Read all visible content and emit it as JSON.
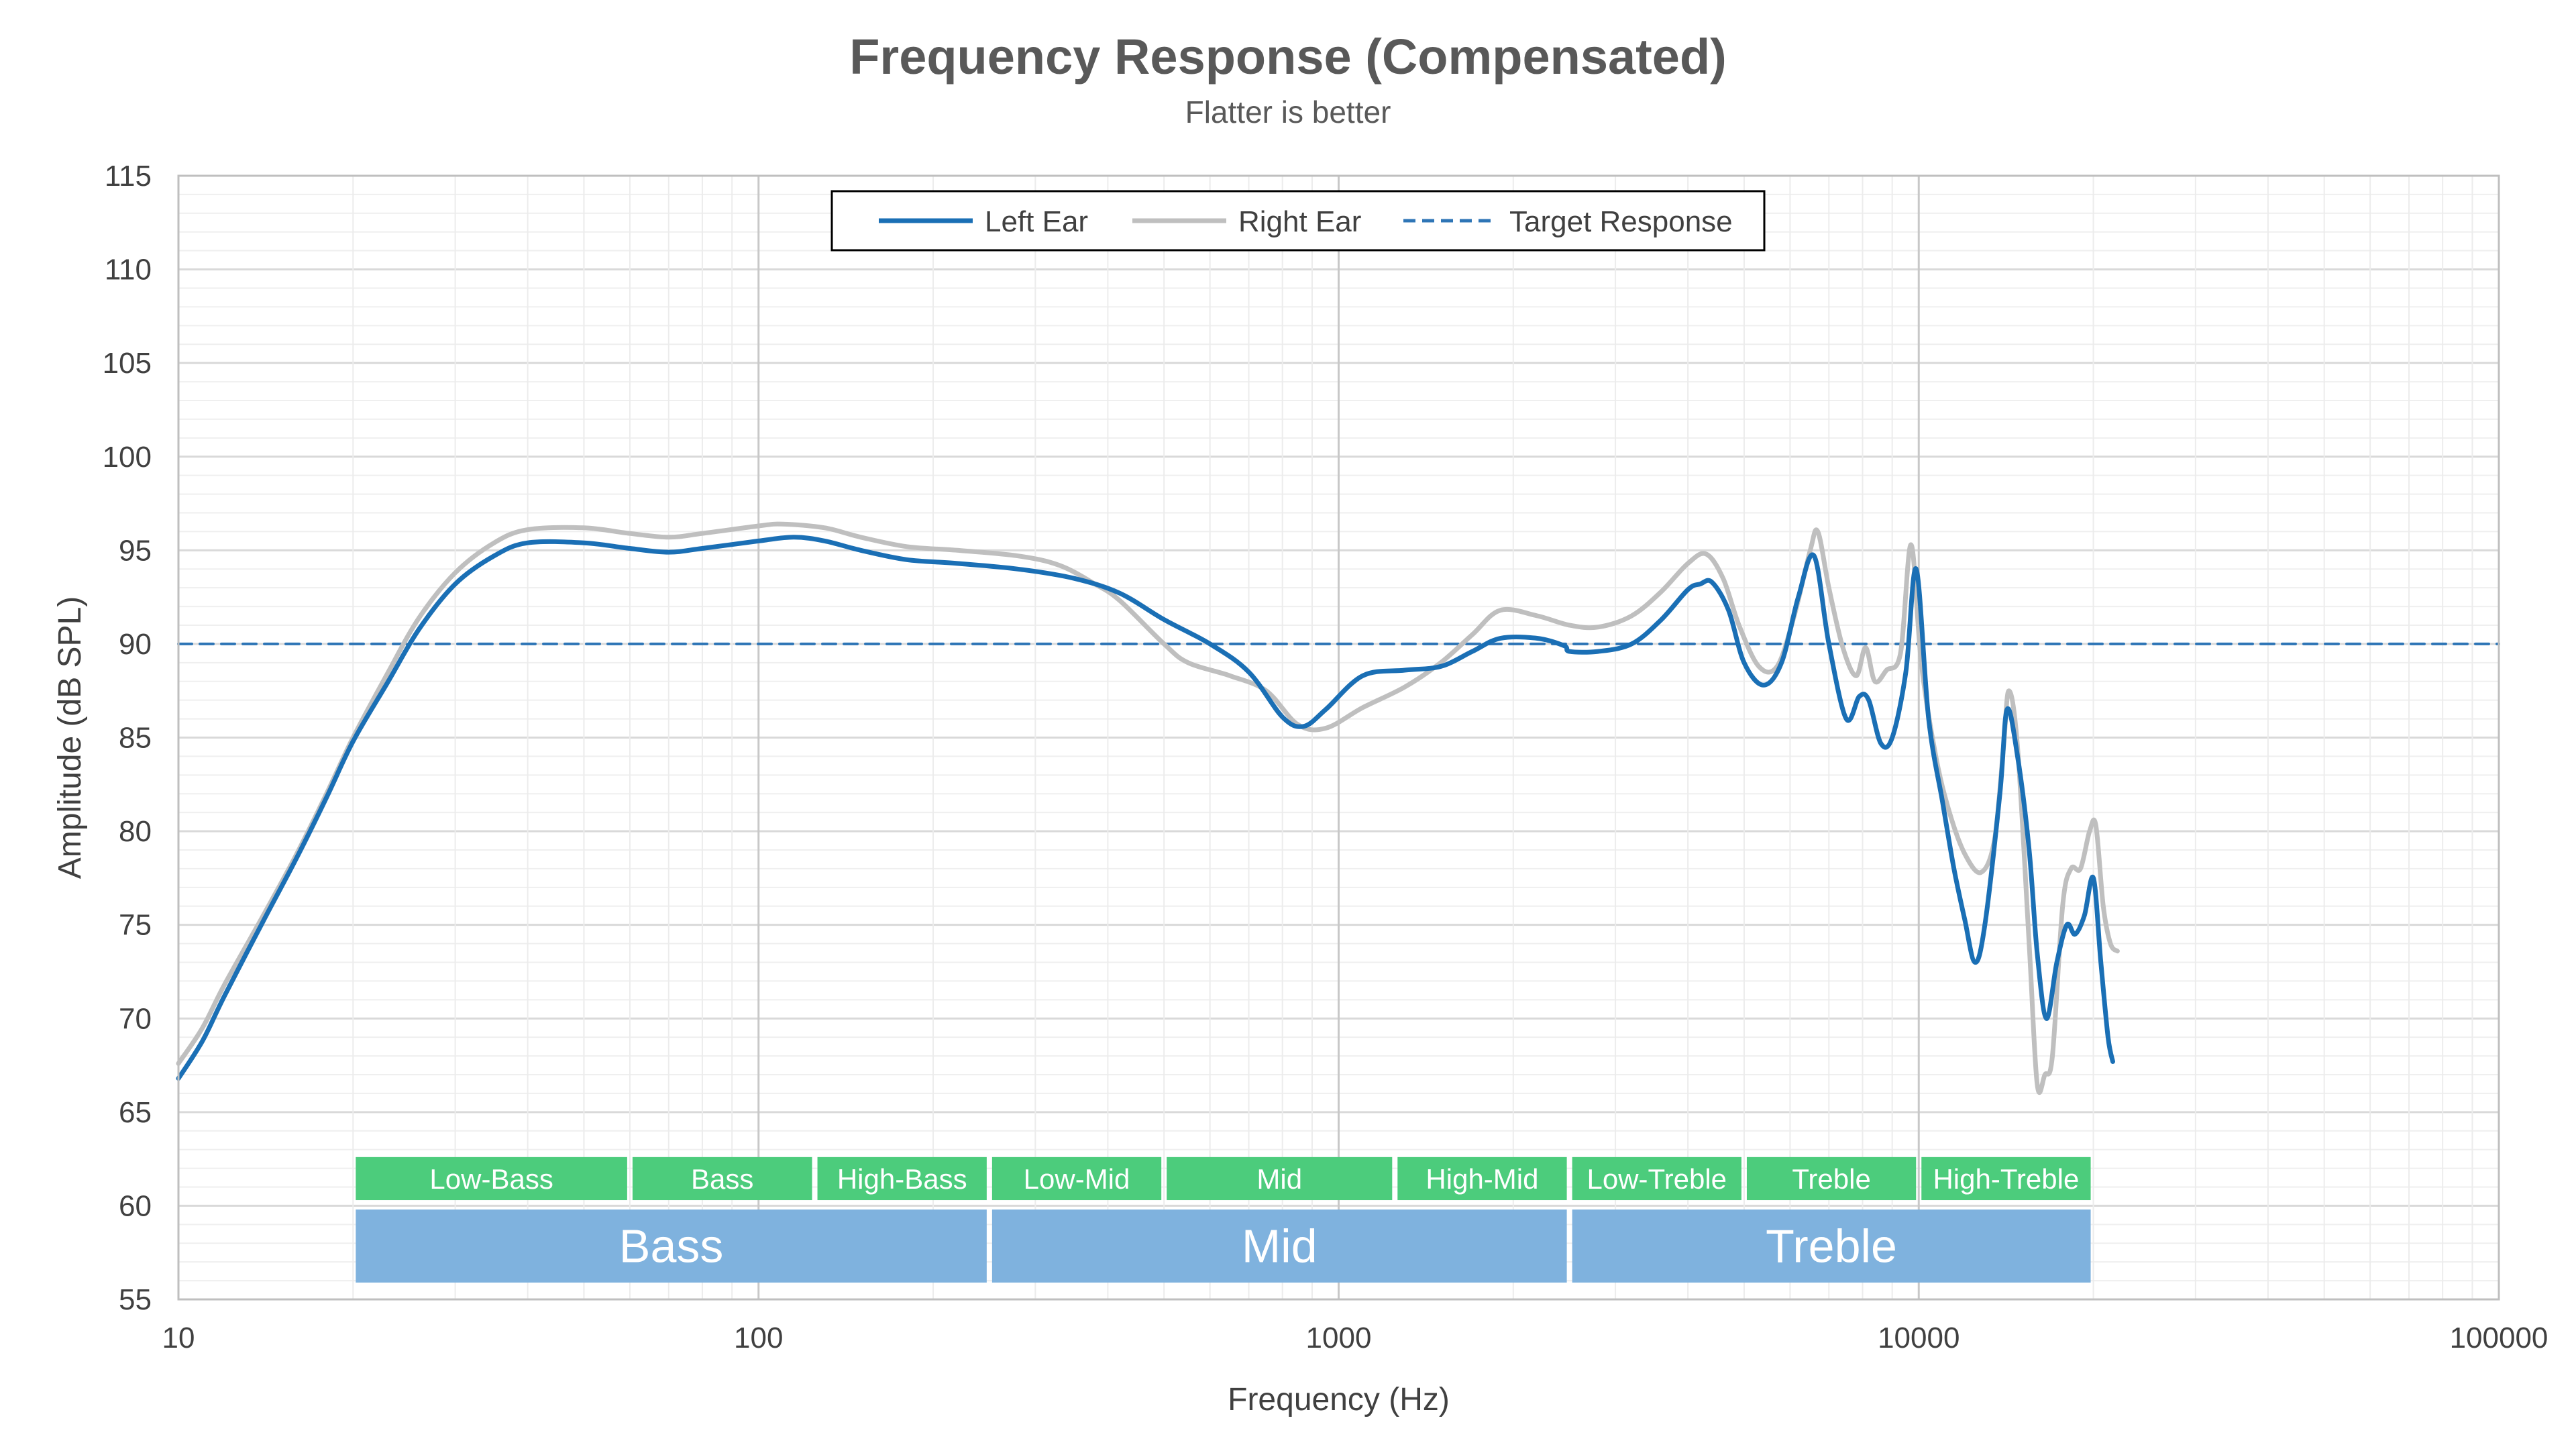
{
  "chart_data": {
    "type": "line",
    "title": "Frequency Response (Compensated)",
    "subtitle": "Flatter is better",
    "xlabel": "Frequency (Hz)",
    "ylabel": "Amplitude (dB SPL)",
    "x_scale": "log",
    "xlim": [
      10,
      100000
    ],
    "ylim": [
      55,
      115
    ],
    "x_ticks": [
      10,
      100,
      1000,
      10000,
      100000
    ],
    "x_tick_labels": [
      "10",
      "100",
      "1000",
      "10000",
      "100000"
    ],
    "y_ticks": [
      55,
      60,
      65,
      70,
      75,
      80,
      85,
      90,
      95,
      100,
      105,
      110,
      115
    ],
    "grid": true,
    "legend_position": "top-center",
    "series": [
      {
        "name": "Left Ear",
        "color": "#1a6fb5",
        "style": "solid",
        "points": [
          [
            10,
            66.8
          ],
          [
            11,
            68.8
          ],
          [
            12,
            71.2
          ],
          [
            14,
            75.2
          ],
          [
            16,
            78.6
          ],
          [
            18,
            81.8
          ],
          [
            20,
            84.8
          ],
          [
            23,
            88.0
          ],
          [
            26,
            90.8
          ],
          [
            30,
            93.2
          ],
          [
            35,
            94.7
          ],
          [
            40,
            95.4
          ],
          [
            50,
            95.4
          ],
          [
            60,
            95.1
          ],
          [
            70,
            94.9
          ],
          [
            80,
            95.1
          ],
          [
            100,
            95.5
          ],
          [
            115,
            95.7
          ],
          [
            130,
            95.5
          ],
          [
            150,
            95.0
          ],
          [
            180,
            94.5
          ],
          [
            220,
            94.3
          ],
          [
            280,
            94.0
          ],
          [
            350,
            93.5
          ],
          [
            420,
            92.7
          ],
          [
            500,
            91.3
          ],
          [
            600,
            90.0
          ],
          [
            700,
            88.5
          ],
          [
            800,
            86.1
          ],
          [
            870,
            85.6
          ],
          [
            950,
            86.5
          ],
          [
            1100,
            88.3
          ],
          [
            1300,
            88.6
          ],
          [
            1500,
            88.8
          ],
          [
            1700,
            89.6
          ],
          [
            1900,
            90.3
          ],
          [
            2200,
            90.3
          ],
          [
            2450,
            89.9
          ],
          [
            2500,
            89.6
          ],
          [
            2800,
            89.6
          ],
          [
            3200,
            90.0
          ],
          [
            3600,
            91.3
          ],
          [
            4000,
            92.9
          ],
          [
            4200,
            93.2
          ],
          [
            4400,
            93.3
          ],
          [
            4700,
            91.8
          ],
          [
            5000,
            89.0
          ],
          [
            5400,
            87.8
          ],
          [
            5800,
            89.0
          ],
          [
            6200,
            92.5
          ],
          [
            6600,
            94.7
          ],
          [
            7000,
            90.0
          ],
          [
            7500,
            86.0
          ],
          [
            7900,
            87.2
          ],
          [
            8200,
            87.0
          ],
          [
            8600,
            84.7
          ],
          [
            9000,
            85.0
          ],
          [
            9500,
            88.5
          ],
          [
            9900,
            94.0
          ],
          [
            10400,
            86.0
          ],
          [
            11000,
            81.5
          ],
          [
            11500,
            78.0
          ],
          [
            12000,
            75.3
          ],
          [
            12500,
            73.0
          ],
          [
            13000,
            75.0
          ],
          [
            13800,
            82.0
          ],
          [
            14200,
            86.5
          ],
          [
            14800,
            84.0
          ],
          [
            15500,
            79.0
          ],
          [
            16000,
            73.5
          ],
          [
            16600,
            70.0
          ],
          [
            17300,
            73.0
          ],
          [
            18000,
            75.0
          ],
          [
            18600,
            74.5
          ],
          [
            19300,
            75.5
          ],
          [
            20000,
            77.5
          ],
          [
            20600,
            73.0
          ],
          [
            21200,
            69.0
          ],
          [
            21600,
            67.7
          ]
        ]
      },
      {
        "name": "Right Ear",
        "color": "#bfbfbf",
        "style": "solid",
        "points": [
          [
            10,
            67.6
          ],
          [
            11,
            69.5
          ],
          [
            12,
            71.8
          ],
          [
            14,
            75.5
          ],
          [
            16,
            78.8
          ],
          [
            18,
            82.0
          ],
          [
            20,
            85.0
          ],
          [
            23,
            88.5
          ],
          [
            26,
            91.4
          ],
          [
            30,
            93.8
          ],
          [
            35,
            95.4
          ],
          [
            40,
            96.1
          ],
          [
            50,
            96.2
          ],
          [
            60,
            95.9
          ],
          [
            70,
            95.7
          ],
          [
            80,
            95.9
          ],
          [
            100,
            96.3
          ],
          [
            110,
            96.4
          ],
          [
            130,
            96.2
          ],
          [
            150,
            95.7
          ],
          [
            180,
            95.2
          ],
          [
            220,
            95.0
          ],
          [
            280,
            94.7
          ],
          [
            330,
            94.2
          ],
          [
            380,
            93.2
          ],
          [
            420,
            92.3
          ],
          [
            500,
            90.0
          ],
          [
            550,
            89.0
          ],
          [
            650,
            88.3
          ],
          [
            750,
            87.5
          ],
          [
            850,
            85.7
          ],
          [
            950,
            85.5
          ],
          [
            1100,
            86.6
          ],
          [
            1300,
            87.7
          ],
          [
            1500,
            89.0
          ],
          [
            1700,
            90.5
          ],
          [
            1900,
            91.8
          ],
          [
            2200,
            91.5
          ],
          [
            2500,
            91.0
          ],
          [
            2800,
            90.9
          ],
          [
            3200,
            91.5
          ],
          [
            3600,
            92.8
          ],
          [
            4000,
            94.3
          ],
          [
            4300,
            94.8
          ],
          [
            4600,
            93.5
          ],
          [
            4900,
            91.0
          ],
          [
            5300,
            88.8
          ],
          [
            5700,
            88.8
          ],
          [
            6100,
            91.5
          ],
          [
            6500,
            95.0
          ],
          [
            6700,
            96.0
          ],
          [
            7000,
            93.0
          ],
          [
            7400,
            89.8
          ],
          [
            7800,
            88.3
          ],
          [
            8100,
            89.8
          ],
          [
            8400,
            88.0
          ],
          [
            8800,
            88.6
          ],
          [
            9300,
            89.5
          ],
          [
            9700,
            95.3
          ],
          [
            10100,
            89.0
          ],
          [
            10700,
            84.0
          ],
          [
            11300,
            81.0
          ],
          [
            12000,
            78.8
          ],
          [
            12800,
            77.8
          ],
          [
            13500,
            79.5
          ],
          [
            14000,
            84.5
          ],
          [
            14300,
            87.5
          ],
          [
            14800,
            84.5
          ],
          [
            15500,
            74.0
          ],
          [
            16000,
            66.5
          ],
          [
            16500,
            67.0
          ],
          [
            17000,
            68.0
          ],
          [
            17700,
            76.0
          ],
          [
            18300,
            78.0
          ],
          [
            19000,
            78.0
          ],
          [
            19700,
            80.0
          ],
          [
            20200,
            80.3
          ],
          [
            20800,
            76.0
          ],
          [
            21400,
            74.0
          ],
          [
            22000,
            73.6
          ]
        ]
      },
      {
        "name": "Target Response",
        "color": "#2e75b6",
        "style": "dashed",
        "points": [
          [
            10,
            90
          ],
          [
            100000,
            90
          ]
        ]
      }
    ],
    "bands_small": [
      {
        "label": "Low-Bass",
        "from": 20,
        "to": 60
      },
      {
        "label": "Bass",
        "from": 60,
        "to": 125
      },
      {
        "label": "High-Bass",
        "from": 125,
        "to": 250
      },
      {
        "label": "Low-Mid",
        "from": 250,
        "to": 500
      },
      {
        "label": "Mid",
        "from": 500,
        "to": 1250
      },
      {
        "label": "High-Mid",
        "from": 1250,
        "to": 2500
      },
      {
        "label": "Low-Treble",
        "from": 2500,
        "to": 5000
      },
      {
        "label": "Treble",
        "from": 5000,
        "to": 10000
      },
      {
        "label": "High-Treble",
        "from": 10000,
        "to": 20000
      }
    ],
    "bands_large": [
      {
        "label": "Bass",
        "from": 20,
        "to": 250
      },
      {
        "label": "Mid",
        "from": 250,
        "to": 2500
      },
      {
        "label": "Treble",
        "from": 2500,
        "to": 20000
      }
    ],
    "band_colors": {
      "small": "#4ccc7c",
      "large": "#7fb2de"
    }
  }
}
